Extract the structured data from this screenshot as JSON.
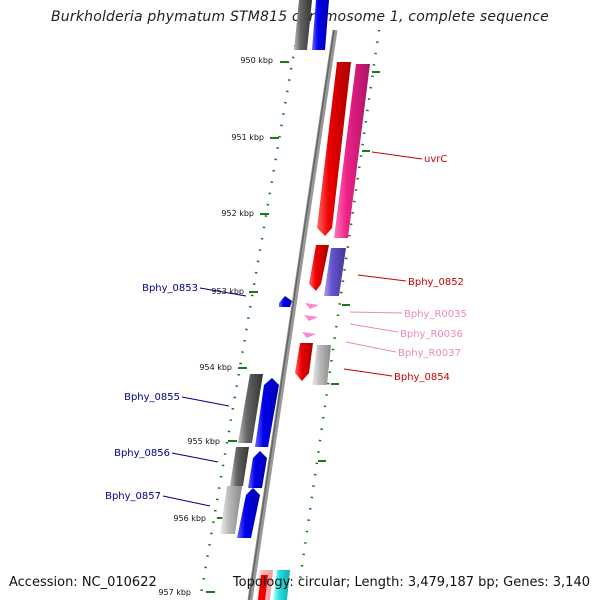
{
  "title": "Burkholderia phymatum STM815 chromosome 1, complete sequence",
  "footer": {
    "accession": "Accession: NC_010622",
    "summary": "Topology: circular; Length: 3,479,187 bp; Genes: 3,140"
  },
  "colors": {
    "backbone": "#888888",
    "tick": "#1a7a1a",
    "red_gene": "#ee0000",
    "pink_gene": "#ee2288",
    "blue_gene": "#0000ee",
    "gray_gene": "#666666",
    "purple_gene": "#6655cc",
    "rna_label": "#ee88bb",
    "red_label": "#cc0000",
    "blue_label": "#000088"
  },
  "scale": {
    "unit": "kbp",
    "ticks": [
      {
        "kbp": 950,
        "label": "950 kbp"
      },
      {
        "kbp": 951,
        "label": "951 kbp"
      },
      {
        "kbp": 952,
        "label": "952 kbp"
      },
      {
        "kbp": 953,
        "label": "953 kbp"
      },
      {
        "kbp": 954,
        "label": "954 kbp"
      },
      {
        "kbp": 955,
        "label": "955 kbp"
      },
      {
        "kbp": 956,
        "label": "956 kbp"
      },
      {
        "kbp": 957,
        "label": "957 kbp"
      }
    ]
  },
  "labels": [
    {
      "id": "uvrC",
      "text": "uvrC",
      "kind": "red"
    },
    {
      "id": "Bphy_0852",
      "text": "Bphy_0852",
      "kind": "red"
    },
    {
      "id": "Bphy_0853",
      "text": "Bphy_0853",
      "kind": "blue"
    },
    {
      "id": "Bphy_R0035",
      "text": "Bphy_R0035",
      "kind": "rna"
    },
    {
      "id": "Bphy_R0036",
      "text": "Bphy_R0036",
      "kind": "rna"
    },
    {
      "id": "Bphy_R0037",
      "text": "Bphy_R0037",
      "kind": "rna"
    },
    {
      "id": "Bphy_0854",
      "text": "Bphy_0854",
      "kind": "red"
    },
    {
      "id": "Bphy_0855",
      "text": "Bphy_0855",
      "kind": "blue"
    },
    {
      "id": "Bphy_0856",
      "text": "Bphy_0856",
      "kind": "blue"
    },
    {
      "id": "Bphy_0857",
      "text": "Bphy_0857",
      "kind": "blue"
    }
  ]
}
